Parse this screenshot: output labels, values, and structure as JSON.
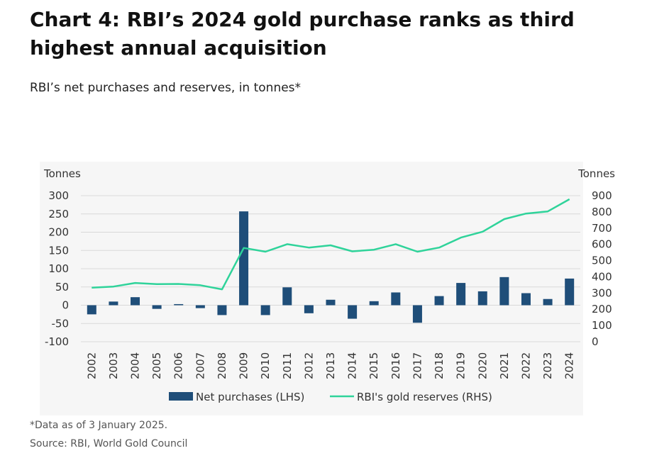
{
  "header": {
    "title": "Chart 4: RBI’s 2024 gold purchase ranks as third highest annual acquisition",
    "subtitle": "RBI’s net purchases and reserves, in tonnes*"
  },
  "footer": {
    "footnote": "*Data as of 3 January 2025.",
    "source": "Source: RBI, World Gold Council"
  },
  "colors": {
    "bar": "#1f4e79",
    "line": "#2fd39a",
    "grid": "#d9d9d9",
    "panel": "#f6f6f6"
  },
  "chart_data": {
    "type": "bar",
    "categories": [
      "2002",
      "2003",
      "2004",
      "2005",
      "2006",
      "2007",
      "2008",
      "2009",
      "2010",
      "2011",
      "2012",
      "2013",
      "2014",
      "2015",
      "2016",
      "2017",
      "2018",
      "2019",
      "2020",
      "2021",
      "2022",
      "2023",
      "2024"
    ],
    "series": [
      {
        "name": "Net purchases (LHS)",
        "type": "bar",
        "axis": "left",
        "values": [
          -25,
          10,
          22,
          -10,
          3,
          -8,
          -27,
          257,
          -27,
          49,
          -22,
          15,
          -37,
          11,
          35,
          -48,
          25,
          61,
          38,
          77,
          33,
          17,
          73
        ]
      },
      {
        "name": "RBI's gold reserves (RHS)",
        "type": "line",
        "axis": "right",
        "values": [
          333,
          340,
          362,
          355,
          356,
          348,
          323,
          578,
          555,
          601,
          580,
          594,
          557,
          567,
          601,
          555,
          580,
          642,
          678,
          756,
          790,
          803,
          878
        ]
      }
    ],
    "yaxis_left": {
      "label": "Tonnes",
      "range": [
        -100,
        300
      ],
      "ticks": [
        300,
        250,
        200,
        150,
        100,
        50,
        0,
        -50,
        -100
      ]
    },
    "yaxis_right": {
      "label": "Tonnes",
      "range": [
        0,
        900
      ],
      "ticks": [
        900,
        800,
        700,
        600,
        500,
        400,
        300,
        200,
        100,
        0
      ]
    },
    "grid": true,
    "legend_position": "bottom"
  }
}
